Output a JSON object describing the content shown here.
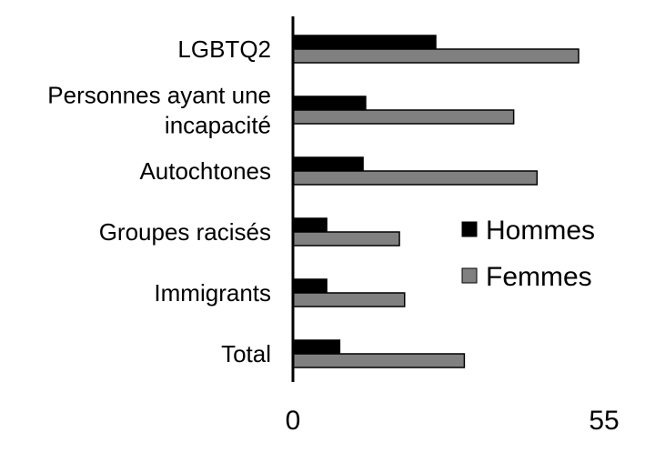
{
  "chart_data": {
    "type": "bar",
    "orientation": "horizontal",
    "categories": [
      [
        "LGBTQ2"
      ],
      [
        "Personnes ayant une",
        "incapacité"
      ],
      [
        "Autochtones"
      ],
      [
        "Groupes racisés"
      ],
      [
        "Immigrants"
      ],
      [
        "Total"
      ]
    ],
    "series": [
      {
        "name": "Hommes",
        "color": "#000000",
        "values": [
          27.5,
          14,
          13.5,
          6.5,
          6.5,
          9
        ]
      },
      {
        "name": "Femmes",
        "color": "#808080",
        "values": [
          55,
          42.5,
          47,
          20.5,
          21.5,
          33
        ]
      }
    ],
    "xlim": [
      0,
      55
    ],
    "xticks": [
      "0",
      "55"
    ],
    "grid": false,
    "legend_position": "right"
  }
}
